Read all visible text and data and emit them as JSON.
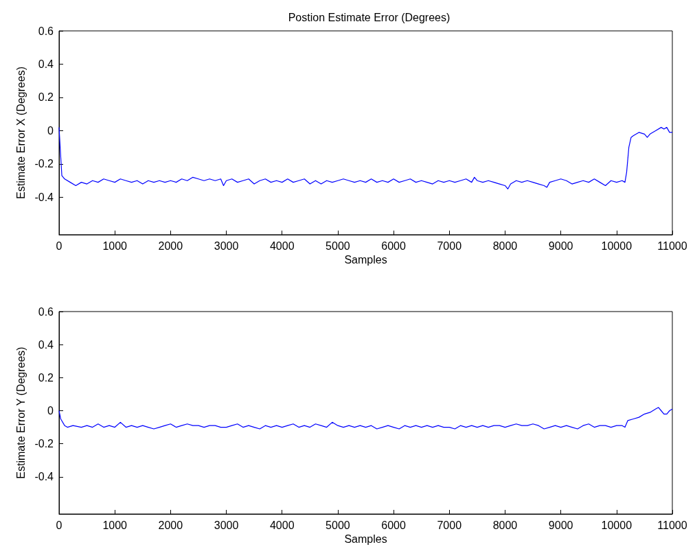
{
  "chart_data": [
    {
      "type": "line",
      "title": "Postion Estimate Error (Degrees)",
      "xlabel": "Samples",
      "ylabel": "Estimate Error X (Degrees)",
      "xlim": [
        0,
        11000
      ],
      "xticks": [
        0,
        1000,
        2000,
        3000,
        4000,
        5000,
        6000,
        7000,
        8000,
        9000,
        10000,
        11000
      ],
      "ylim": [
        -0.625,
        0.6
      ],
      "yticks": [
        -0.4,
        -0.2,
        0,
        0.2,
        0.4,
        0.6
      ],
      "x": [
        0,
        20,
        50,
        100,
        200,
        300,
        400,
        500,
        600,
        700,
        800,
        900,
        1000,
        1100,
        1200,
        1300,
        1400,
        1500,
        1600,
        1700,
        1800,
        1900,
        2000,
        2100,
        2200,
        2300,
        2400,
        2500,
        2600,
        2700,
        2800,
        2900,
        2950,
        3000,
        3100,
        3200,
        3300,
        3400,
        3500,
        3600,
        3700,
        3800,
        3900,
        4000,
        4100,
        4200,
        4300,
        4400,
        4500,
        4600,
        4700,
        4800,
        4900,
        5000,
        5100,
        5200,
        5300,
        5400,
        5500,
        5600,
        5700,
        5800,
        5900,
        6000,
        6100,
        6200,
        6300,
        6400,
        6500,
        6600,
        6700,
        6800,
        6900,
        7000,
        7100,
        7200,
        7300,
        7400,
        7450,
        7500,
        7600,
        7700,
        7800,
        7900,
        8000,
        8050,
        8100,
        8200,
        8300,
        8400,
        8500,
        8600,
        8700,
        8750,
        8800,
        8900,
        9000,
        9100,
        9200,
        9300,
        9400,
        9500,
        9600,
        9700,
        9800,
        9900,
        10000,
        10100,
        10150,
        10180,
        10220,
        10260,
        10300,
        10400,
        10500,
        10550,
        10600,
        10700,
        10800,
        10850,
        10900,
        10950,
        11000
      ],
      "series": [
        {
          "color": "#0000ff",
          "values": [
            0.02,
            -0.1,
            -0.27,
            -0.29,
            -0.31,
            -0.33,
            -0.31,
            -0.32,
            -0.3,
            -0.31,
            -0.29,
            -0.3,
            -0.31,
            -0.29,
            -0.3,
            -0.31,
            -0.3,
            -0.32,
            -0.3,
            -0.31,
            -0.3,
            -0.31,
            -0.3,
            -0.31,
            -0.29,
            -0.3,
            -0.28,
            -0.29,
            -0.3,
            -0.29,
            -0.3,
            -0.29,
            -0.33,
            -0.3,
            -0.29,
            -0.31,
            -0.3,
            -0.29,
            -0.32,
            -0.3,
            -0.29,
            -0.31,
            -0.3,
            -0.31,
            -0.29,
            -0.31,
            -0.3,
            -0.29,
            -0.32,
            -0.3,
            -0.32,
            -0.3,
            -0.31,
            -0.3,
            -0.29,
            -0.3,
            -0.31,
            -0.3,
            -0.31,
            -0.29,
            -0.31,
            -0.3,
            -0.31,
            -0.29,
            -0.31,
            -0.3,
            -0.29,
            -0.31,
            -0.3,
            -0.31,
            -0.32,
            -0.3,
            -0.31,
            -0.3,
            -0.31,
            -0.3,
            -0.29,
            -0.31,
            -0.28,
            -0.3,
            -0.31,
            -0.3,
            -0.31,
            -0.32,
            -0.33,
            -0.35,
            -0.32,
            -0.3,
            -0.31,
            -0.3,
            -0.31,
            -0.32,
            -0.33,
            -0.34,
            -0.31,
            -0.3,
            -0.29,
            -0.3,
            -0.32,
            -0.31,
            -0.3,
            -0.31,
            -0.29,
            -0.31,
            -0.33,
            -0.3,
            -0.31,
            -0.3,
            -0.31,
            -0.25,
            -0.1,
            -0.04,
            -0.03,
            -0.01,
            -0.02,
            -0.04,
            -0.02,
            0.0,
            0.02,
            0.01,
            0.02,
            -0.01,
            -0.01
          ]
        }
      ]
    },
    {
      "type": "line",
      "xlabel": "Samples",
      "ylabel": "Estimate Error Y (Degrees)",
      "xlim": [
        0,
        11000
      ],
      "xticks": [
        0,
        1000,
        2000,
        3000,
        4000,
        5000,
        6000,
        7000,
        8000,
        9000,
        10000,
        11000
      ],
      "ylim": [
        -0.625,
        0.6
      ],
      "yticks": [
        -0.4,
        -0.2,
        0,
        0.2,
        0.4,
        0.6
      ],
      "x": [
        0,
        30,
        100,
        150,
        250,
        400,
        500,
        600,
        700,
        800,
        900,
        1000,
        1100,
        1200,
        1300,
        1400,
        1500,
        1600,
        1700,
        1800,
        1900,
        2000,
        2100,
        2200,
        2300,
        2400,
        2500,
        2600,
        2700,
        2800,
        2900,
        3000,
        3100,
        3200,
        3300,
        3400,
        3500,
        3600,
        3700,
        3800,
        3900,
        4000,
        4100,
        4200,
        4300,
        4400,
        4500,
        4600,
        4700,
        4800,
        4900,
        5000,
        5100,
        5200,
        5300,
        5400,
        5500,
        5600,
        5700,
        5800,
        5900,
        6000,
        6100,
        6200,
        6300,
        6400,
        6500,
        6600,
        6700,
        6800,
        6900,
        7000,
        7100,
        7200,
        7300,
        7400,
        7500,
        7600,
        7700,
        7800,
        7900,
        8000,
        8100,
        8200,
        8300,
        8400,
        8500,
        8600,
        8700,
        8800,
        8900,
        9000,
        9100,
        9200,
        9300,
        9400,
        9500,
        9600,
        9700,
        9800,
        9900,
        10000,
        10100,
        10150,
        10200,
        10300,
        10400,
        10500,
        10600,
        10700,
        10750,
        10800,
        10850,
        10900,
        10950,
        11000
      ],
      "series": [
        {
          "color": "#0000ff",
          "values": [
            0.0,
            -0.05,
            -0.09,
            -0.1,
            -0.09,
            -0.1,
            -0.09,
            -0.1,
            -0.08,
            -0.1,
            -0.09,
            -0.1,
            -0.07,
            -0.1,
            -0.09,
            -0.1,
            -0.09,
            -0.1,
            -0.11,
            -0.1,
            -0.09,
            -0.08,
            -0.1,
            -0.09,
            -0.08,
            -0.09,
            -0.09,
            -0.1,
            -0.09,
            -0.09,
            -0.1,
            -0.1,
            -0.09,
            -0.08,
            -0.1,
            -0.09,
            -0.1,
            -0.11,
            -0.09,
            -0.1,
            -0.09,
            -0.1,
            -0.09,
            -0.08,
            -0.1,
            -0.09,
            -0.1,
            -0.08,
            -0.09,
            -0.1,
            -0.07,
            -0.09,
            -0.1,
            -0.09,
            -0.1,
            -0.09,
            -0.1,
            -0.09,
            -0.11,
            -0.1,
            -0.09,
            -0.1,
            -0.11,
            -0.09,
            -0.1,
            -0.09,
            -0.1,
            -0.09,
            -0.1,
            -0.09,
            -0.1,
            -0.1,
            -0.11,
            -0.09,
            -0.1,
            -0.09,
            -0.1,
            -0.09,
            -0.1,
            -0.09,
            -0.09,
            -0.1,
            -0.09,
            -0.08,
            -0.09,
            -0.09,
            -0.08,
            -0.09,
            -0.11,
            -0.1,
            -0.09,
            -0.1,
            -0.09,
            -0.1,
            -0.11,
            -0.09,
            -0.08,
            -0.1,
            -0.09,
            -0.09,
            -0.1,
            -0.09,
            -0.09,
            -0.1,
            -0.06,
            -0.05,
            -0.04,
            -0.02,
            -0.01,
            0.01,
            0.02,
            0.0,
            -0.02,
            -0.02,
            0.0,
            0.01
          ]
        }
      ]
    }
  ]
}
